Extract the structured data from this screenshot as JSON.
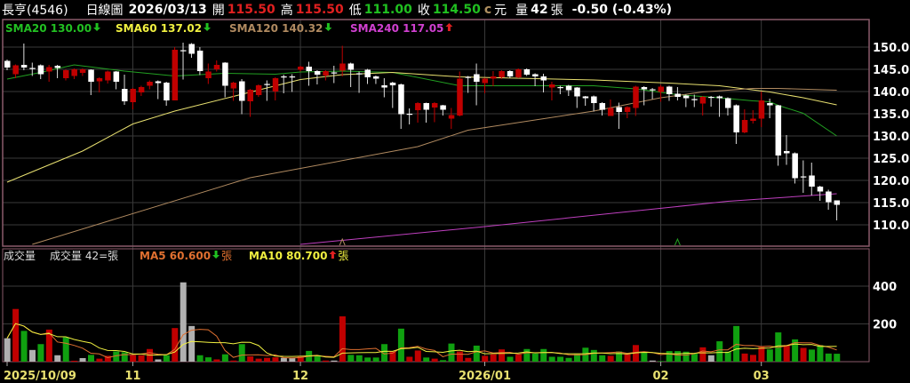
{
  "header": {
    "name": "長亨(4546)",
    "period": "日線圖",
    "date": "2026/03/13",
    "open_label": "開",
    "open": "115.50",
    "high_label": "高",
    "high": "115.50",
    "low_label": "低",
    "low": "111.00",
    "close_label": "收",
    "close": "114.50",
    "currency_mark": "c",
    "currency": "元",
    "volume_label": "量",
    "volume": "42",
    "volume_unit": "張",
    "change": "-0.50 (-0.43%)"
  },
  "price_legend": [
    {
      "label": "SMA20 130.00",
      "arrow": "down",
      "color": "#22c022"
    },
    {
      "label": "SMA60 137.02",
      "arrow": "down",
      "color": "#f0f040"
    },
    {
      "label": "SMA120 140.32",
      "arrow": "down",
      "color": "#b08a60"
    },
    {
      "label": "SMA240 117.05",
      "arrow": "up",
      "color": "#d040d0"
    }
  ],
  "volume_legend": {
    "title": "成交量",
    "current": "成交量 42=張",
    "ma5": "MA5 60.600",
    "ma5_arrow": "down",
    "ma5_unit": "張",
    "ma5_color": "#e07030",
    "ma10": "MA10 80.700",
    "ma10_arrow": "up",
    "ma10_unit": "張",
    "ma10_color": "#f0f040"
  },
  "colors": {
    "up": "#c00000",
    "down": "#ffffff",
    "vol_up": "#c00000",
    "vol_down": "#10a010",
    "vol_flat": "#b0b0b0",
    "frame": "#8a5a6a",
    "grid": "#3a3a3a"
  },
  "chart_data": {
    "type": "candlestick",
    "price_axis": {
      "ticks": [
        "150.0",
        "145.0",
        "140.0",
        "135.0",
        "130.0",
        "125.0",
        "120.0",
        "115.0",
        "110.0"
      ],
      "range": [
        105.5,
        156
      ]
    },
    "volume_axis": {
      "ticks": [
        "400",
        "200"
      ],
      "range": [
        0,
        590
      ]
    },
    "date_labels": [
      {
        "index": 0,
        "label": "2025/10/09"
      },
      {
        "index": 15,
        "label": "11"
      },
      {
        "index": 35,
        "label": "12"
      },
      {
        "index": 57,
        "label": "2026/01"
      },
      {
        "index": 78,
        "label": "02"
      },
      {
        "index": 90,
        "label": "03"
      }
    ],
    "ohlc": [
      [
        146.9,
        147.2,
        144.8,
        145.4
      ],
      [
        143.9,
        146.1,
        143.0,
        145.9
      ],
      [
        146.0,
        150.8,
        144.8,
        145.4
      ],
      [
        145.3,
        146.5,
        143.5,
        145.3
      ],
      [
        145.9,
        146.1,
        142.8,
        143.9
      ],
      [
        144.5,
        146.0,
        142.2,
        145.5
      ],
      [
        145.8,
        146.0,
        143.0,
        145.3
      ],
      [
        143.0,
        145.0,
        142.5,
        144.8
      ],
      [
        143.5,
        145.2,
        142.8,
        145.0
      ],
      [
        144.2,
        145.2,
        143.5,
        145.0
      ],
      [
        144.9,
        145.0,
        139.2,
        142.2
      ],
      [
        142.3,
        143.2,
        139.8,
        143.0
      ],
      [
        142.5,
        144.7,
        141.8,
        144.5
      ],
      [
        144.5,
        144.6,
        140.5,
        142.2
      ],
      [
        140.6,
        143.8,
        137.0,
        137.8
      ],
      [
        137.6,
        140.8,
        136.0,
        140.6
      ],
      [
        139.8,
        141.3,
        139.0,
        141.0
      ],
      [
        141.3,
        142.5,
        140.5,
        142.2
      ],
      [
        142.3,
        142.5,
        138.3,
        141.9
      ],
      [
        142.0,
        142.2,
        136.8,
        138.0
      ],
      [
        138.0,
        150.0,
        138.0,
        149.4
      ],
      [
        149.3,
        151.0,
        142.7,
        149.3
      ],
      [
        150.7,
        150.9,
        147.6,
        148.5
      ],
      [
        149.2,
        150.0,
        143.7,
        144.6
      ],
      [
        143.0,
        146.3,
        141.7,
        144.5
      ],
      [
        145.0,
        147.0,
        144.5,
        146.0
      ],
      [
        146.5,
        146.6,
        138.7,
        141.3
      ],
      [
        140.7,
        142.2,
        137.9,
        142.0
      ],
      [
        142.3,
        142.8,
        134.9,
        137.9
      ],
      [
        137.8,
        140.6,
        134.3,
        140.4
      ],
      [
        139.2,
        141.6,
        138.8,
        141.4
      ],
      [
        141.7,
        142.5,
        137.9,
        141.7
      ],
      [
        140.0,
        143.2,
        138.0,
        143.0
      ],
      [
        143.4,
        143.8,
        139.6,
        143.4
      ],
      [
        143.4,
        143.9,
        139.9,
        143.4
      ],
      [
        144.9,
        145.8,
        144.5,
        145.6
      ],
      [
        145.6,
        146.7,
        141.3,
        144.6
      ],
      [
        144.6,
        144.8,
        141.6,
        143.8
      ],
      [
        143.6,
        144.8,
        142.5,
        144.6
      ],
      [
        144.3,
        145.8,
        141.9,
        144.3
      ],
      [
        144.7,
        150.3,
        143.4,
        146.3
      ],
      [
        146.3,
        146.5,
        141.0,
        144.9
      ],
      [
        144.1,
        144.5,
        139.7,
        144.0
      ],
      [
        144.9,
        145.1,
        141.7,
        143.2
      ],
      [
        143.4,
        143.6,
        141.7,
        142.9
      ],
      [
        141.4,
        143.0,
        138.7,
        140.9
      ],
      [
        142.0,
        142.2,
        136.3,
        141.4
      ],
      [
        141.6,
        141.8,
        131.6,
        134.9
      ],
      [
        135.0,
        136.2,
        132.6,
        134.9
      ],
      [
        135.8,
        137.6,
        133.0,
        137.4
      ],
      [
        137.4,
        137.5,
        133.0,
        135.9
      ],
      [
        136.4,
        137.6,
        133.1,
        137.4
      ],
      [
        136.9,
        137.0,
        134.6,
        135.9
      ],
      [
        133.9,
        136.3,
        131.6,
        134.7
      ],
      [
        134.6,
        144.5,
        134.4,
        142.9
      ],
      [
        143.3,
        143.5,
        139.7,
        143.3
      ],
      [
        143.9,
        146.3,
        136.9,
        142.2
      ],
      [
        141.9,
        143.1,
        139.6,
        142.9
      ],
      [
        142.9,
        144.6,
        141.2,
        143.4
      ],
      [
        143.2,
        144.8,
        142.8,
        144.6
      ],
      [
        144.6,
        144.8,
        143.0,
        143.4
      ],
      [
        143.2,
        145.2,
        143.0,
        145.0
      ],
      [
        145.0,
        145.2,
        143.5,
        143.8
      ],
      [
        143.9,
        144.1,
        141.2,
        143.4
      ],
      [
        143.4,
        144.0,
        139.8,
        142.5
      ],
      [
        140.9,
        142.2,
        138.0,
        141.6
      ],
      [
        141.0,
        141.3,
        139.4,
        141.0
      ],
      [
        141.3,
        141.5,
        139.0,
        140.3
      ],
      [
        140.9,
        141.0,
        136.3,
        138.9
      ],
      [
        138.9,
        139.0,
        136.8,
        138.5
      ],
      [
        138.9,
        139.1,
        135.5,
        137.4
      ],
      [
        137.4,
        137.6,
        134.6,
        135.9
      ],
      [
        134.5,
        138.2,
        134.5,
        136.3
      ],
      [
        136.5,
        137.5,
        131.6,
        135.4
      ],
      [
        135.4,
        136.7,
        134.0,
        136.5
      ],
      [
        136.3,
        141.3,
        134.5,
        141.1
      ],
      [
        141.0,
        141.2,
        136.9,
        140.5
      ],
      [
        140.5,
        140.8,
        138.3,
        140.5
      ],
      [
        139.9,
        141.5,
        137.7,
        141.1
      ],
      [
        141.1,
        141.3,
        137.9,
        139.4
      ],
      [
        139.5,
        141.0,
        138.0,
        138.8
      ],
      [
        139.1,
        139.3,
        136.5,
        138.5
      ],
      [
        138.3,
        139.3,
        136.5,
        138.3
      ],
      [
        137.3,
        139.0,
        134.6,
        138.8
      ],
      [
        138.8,
        139.0,
        136.6,
        138.8
      ],
      [
        138.9,
        139.1,
        134.3,
        138.5
      ],
      [
        138.5,
        138.7,
        134.6,
        136.3
      ],
      [
        136.9,
        137.1,
        128.2,
        130.8
      ],
      [
        130.8,
        136.0,
        130.6,
        133.6
      ],
      [
        133.4,
        135.8,
        132.8,
        133.9
      ],
      [
        133.9,
        140.0,
        132.0,
        138.0
      ],
      [
        137.4,
        138.4,
        134.0,
        136.9
      ],
      [
        136.9,
        137.0,
        123.3,
        125.6
      ],
      [
        126.6,
        130.2,
        123.5,
        126.1
      ],
      [
        126.1,
        126.3,
        119.3,
        120.5
      ],
      [
        120.9,
        124.5,
        117.2,
        120.9
      ],
      [
        121.1,
        124.0,
        116.6,
        118.6
      ],
      [
        118.6,
        118.8,
        115.4,
        117.5
      ],
      [
        117.5,
        117.9,
        113.4,
        115.1
      ],
      [
        115.5,
        115.5,
        111.0,
        114.5
      ]
    ],
    "volume": [
      [
        124,
        "flat"
      ],
      [
        279,
        "up"
      ],
      [
        163,
        "down"
      ],
      [
        62,
        "flat"
      ],
      [
        93,
        "down"
      ],
      [
        170,
        "up"
      ],
      [
        34,
        "flat"
      ],
      [
        129,
        "down"
      ],
      [
        5,
        "up"
      ],
      [
        19,
        "flat"
      ],
      [
        36,
        "down"
      ],
      [
        16,
        "up"
      ],
      [
        31,
        "up"
      ],
      [
        54,
        "down"
      ],
      [
        50,
        "down"
      ],
      [
        34,
        "up"
      ],
      [
        34,
        "up"
      ],
      [
        67,
        "up"
      ],
      [
        12,
        "flat"
      ],
      [
        34,
        "down"
      ],
      [
        178,
        "up"
      ],
      [
        420,
        "flat"
      ],
      [
        189,
        "flat"
      ],
      [
        34,
        "down"
      ],
      [
        23,
        "down"
      ],
      [
        12,
        "up"
      ],
      [
        39,
        "down"
      ],
      [
        6,
        "up"
      ],
      [
        93,
        "down"
      ],
      [
        28,
        "up"
      ],
      [
        16,
        "up"
      ],
      [
        20,
        "up"
      ],
      [
        23,
        "up"
      ],
      [
        20,
        "flat"
      ],
      [
        19,
        "flat"
      ],
      [
        26,
        "up"
      ],
      [
        57,
        "down"
      ],
      [
        34,
        "down"
      ],
      [
        6,
        "up"
      ],
      [
        6,
        "flat"
      ],
      [
        240,
        "up"
      ],
      [
        36,
        "down"
      ],
      [
        34,
        "down"
      ],
      [
        22,
        "down"
      ],
      [
        22,
        "down"
      ],
      [
        93,
        "down"
      ],
      [
        54,
        "up"
      ],
      [
        175,
        "down"
      ],
      [
        26,
        "up"
      ],
      [
        59,
        "up"
      ],
      [
        22,
        "down"
      ],
      [
        16,
        "up"
      ],
      [
        8,
        "down"
      ],
      [
        96,
        "down"
      ],
      [
        54,
        "up"
      ],
      [
        20,
        "up"
      ],
      [
        85,
        "down"
      ],
      [
        31,
        "up"
      ],
      [
        39,
        "up"
      ],
      [
        65,
        "up"
      ],
      [
        26,
        "down"
      ],
      [
        37,
        "up"
      ],
      [
        67,
        "down"
      ],
      [
        43,
        "down"
      ],
      [
        67,
        "down"
      ],
      [
        26,
        "down"
      ],
      [
        26,
        "down"
      ],
      [
        20,
        "down"
      ],
      [
        39,
        "down"
      ],
      [
        74,
        "down"
      ],
      [
        62,
        "down"
      ],
      [
        34,
        "down"
      ],
      [
        31,
        "up"
      ],
      [
        54,
        "down"
      ],
      [
        39,
        "up"
      ],
      [
        88,
        "up"
      ],
      [
        53,
        "down"
      ],
      [
        6,
        "flat"
      ],
      [
        3,
        "down"
      ],
      [
        56,
        "down"
      ],
      [
        56,
        "down"
      ],
      [
        53,
        "down"
      ],
      [
        42,
        "down"
      ],
      [
        76,
        "up"
      ],
      [
        34,
        "flat"
      ],
      [
        108,
        "down"
      ],
      [
        53,
        "down"
      ],
      [
        189,
        "down"
      ],
      [
        43,
        "up"
      ],
      [
        36,
        "up"
      ],
      [
        78,
        "up"
      ],
      [
        65,
        "down"
      ],
      [
        155,
        "down"
      ],
      [
        88,
        "up"
      ],
      [
        118,
        "down"
      ],
      [
        73,
        "up"
      ],
      [
        64,
        "down"
      ],
      [
        88,
        "down"
      ],
      [
        43,
        "down"
      ],
      [
        42,
        "down"
      ]
    ],
    "moving_averages": [
      {
        "name": "SMA20",
        "color": "#22a022",
        "points": [
          [
            0,
            142.8
          ],
          [
            4,
            144.3
          ],
          [
            8,
            146.0
          ],
          [
            14,
            144.6
          ],
          [
            20,
            143.5
          ],
          [
            26,
            144.1
          ],
          [
            32,
            143.9
          ],
          [
            35,
            144.4
          ],
          [
            40,
            144.6
          ],
          [
            46,
            144.3
          ],
          [
            54,
            141.3
          ],
          [
            70,
            141.3
          ],
          [
            75,
            140.6
          ],
          [
            80,
            139.3
          ],
          [
            85,
            138.6
          ],
          [
            89,
            137.9
          ],
          [
            91,
            137.7
          ],
          [
            92,
            136.9
          ],
          [
            95,
            135.1
          ],
          [
            99,
            130.0
          ]
        ]
      },
      {
        "name": "SMA60",
        "color": "#e8e070",
        "points": [
          [
            0,
            119.6
          ],
          [
            9,
            126.6
          ],
          [
            15,
            132.7
          ],
          [
            20,
            135.6
          ],
          [
            27,
            138.9
          ],
          [
            35,
            142.7
          ],
          [
            40,
            143.8
          ],
          [
            46,
            144.3
          ],
          [
            54,
            143.3
          ],
          [
            70,
            142.6
          ],
          [
            79,
            141.9
          ],
          [
            85,
            141.3
          ],
          [
            91,
            139.9
          ],
          [
            95,
            138.6
          ],
          [
            99,
            137.0
          ]
        ]
      },
      {
        "name": "SMA120",
        "color": "#b08a60",
        "points": [
          [
            3,
            105.6
          ],
          [
            29,
            120.6
          ],
          [
            49,
            127.6
          ],
          [
            55,
            131.3
          ],
          [
            70,
            135.6
          ],
          [
            78,
            138.6
          ],
          [
            83,
            139.9
          ],
          [
            89,
            140.7
          ],
          [
            92,
            140.7
          ],
          [
            99,
            140.3
          ]
        ]
      },
      {
        "name": "SMA240",
        "color": "#c040c0",
        "points": [
          [
            35,
            105.6
          ],
          [
            57,
            109.6
          ],
          [
            86,
            115.3
          ],
          [
            99,
            117.0
          ]
        ]
      }
    ],
    "markers": [
      {
        "index": 40,
        "price": 106,
        "color": "#b08a60",
        "shape": "triangle-up"
      },
      {
        "index": 80,
        "price": 106,
        "color": "#22a022",
        "shape": "triangle-up"
      }
    ]
  }
}
